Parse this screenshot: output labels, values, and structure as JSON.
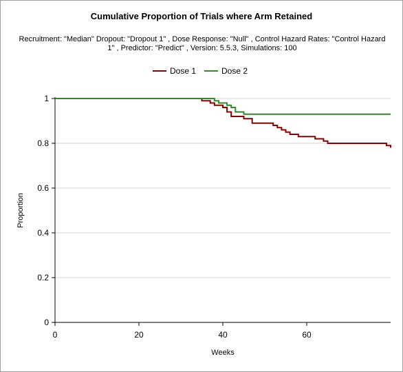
{
  "chart_data": {
    "type": "line",
    "title": "Cumulative Proportion of Trials where Arm Retained",
    "subtitle": "Recruitment: \"Median\" Dropout: \"Dropout 1\" , Dose Response: \"Null\" , Control Hazard Rates: \"Control Hazard 1\" , Predictor: \"Predict\" , Version: 5.5.3, Simulations: 100",
    "xlabel": "Weeks",
    "ylabel": "Proportion",
    "xlim": [
      0,
      80
    ],
    "ylim": [
      0,
      1
    ],
    "xticks": [
      "0",
      "20",
      "40",
      "60"
    ],
    "xtick_values": [
      0,
      20,
      40,
      60
    ],
    "yticks": [
      "0",
      "0.2",
      "0.4",
      "0.6",
      "0.8",
      "1"
    ],
    "ytick_values": [
      0,
      0.2,
      0.4,
      0.6,
      0.8,
      1
    ],
    "grid": "horizontal",
    "legend": "top-center",
    "step": true,
    "series": [
      {
        "name": "Dose 1",
        "color": "#8b0000",
        "x": [
          0,
          34,
          35,
          37,
          38,
          40,
          41,
          42,
          45,
          47,
          51,
          52,
          53,
          54,
          55,
          56,
          58,
          60,
          62,
          64,
          65,
          74,
          79,
          80
        ],
        "y": [
          1.0,
          1.0,
          0.99,
          0.98,
          0.97,
          0.96,
          0.94,
          0.92,
          0.91,
          0.89,
          0.89,
          0.88,
          0.87,
          0.86,
          0.85,
          0.84,
          0.83,
          0.83,
          0.82,
          0.81,
          0.8,
          0.8,
          0.79,
          0.78
        ]
      },
      {
        "name": "Dose 2",
        "color": "#2e8b22",
        "x": [
          0,
          37,
          38,
          39,
          41,
          42,
          43,
          45,
          80
        ],
        "y": [
          1.0,
          1.0,
          0.99,
          0.98,
          0.97,
          0.96,
          0.94,
          0.93,
          0.93
        ]
      }
    ]
  }
}
